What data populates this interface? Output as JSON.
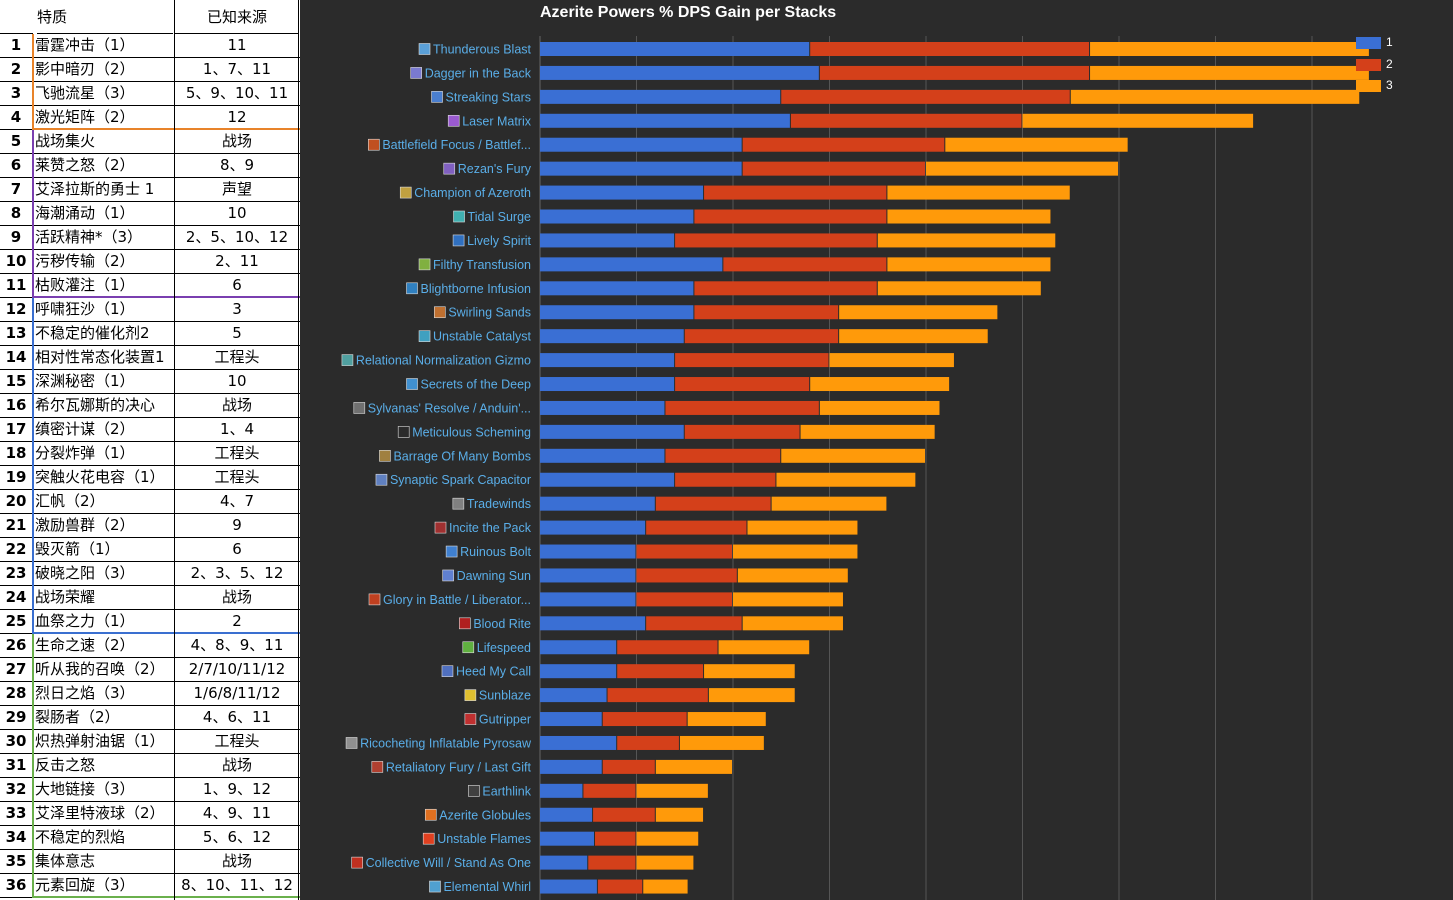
{
  "table": {
    "headers": {
      "trait": "特质",
      "source": "已知来源"
    },
    "rows": [
      {
        "num": "1",
        "name": "雷霆冲击（1）",
        "source": "11"
      },
      {
        "num": "2",
        "name": "影中暗刃（2）",
        "source": "1、7、11"
      },
      {
        "num": "3",
        "name": "飞驰流星（3）",
        "source": "5、9、10、11"
      },
      {
        "num": "4",
        "name": "激光矩阵（2）",
        "source": "12"
      },
      {
        "num": "5",
        "name": "战场集火",
        "source": "战场"
      },
      {
        "num": "6",
        "name": "莱赞之怒（2）",
        "source": "8、9"
      },
      {
        "num": "7",
        "name": "艾泽拉斯的勇士 1",
        "source": "声望"
      },
      {
        "num": "8",
        "name": "海潮涌动（1）",
        "source": "10"
      },
      {
        "num": "9",
        "name": "活跃精神*（3）",
        "source": "2、5、10、12"
      },
      {
        "num": "10",
        "name": "污秽传输（2）",
        "source": "2、11"
      },
      {
        "num": "11",
        "name": "枯败灌注（1）",
        "source": "6"
      },
      {
        "num": "12",
        "name": "呼啸狂沙（1）",
        "source": "3"
      },
      {
        "num": "13",
        "name": "不稳定的催化剂2",
        "source": "5"
      },
      {
        "num": "14",
        "name": "相对性常态化装置1",
        "source": "工程头"
      },
      {
        "num": "15",
        "name": "深渊秘密（1）",
        "source": "10"
      },
      {
        "num": "16",
        "name": "希尔瓦娜斯的决心",
        "source": "战场"
      },
      {
        "num": "17",
        "name": "缜密计谋（2）",
        "source": "1、4"
      },
      {
        "num": "18",
        "name": "分裂炸弹（1）",
        "source": "工程头"
      },
      {
        "num": "19",
        "name": "突触火花电容（1）",
        "source": "工程头"
      },
      {
        "num": "20",
        "name": "汇帆（2）",
        "source": "4、7"
      },
      {
        "num": "21",
        "name": "激励兽群（2）",
        "source": "9"
      },
      {
        "num": "22",
        "name": "毁灭箭（1）",
        "source": "6"
      },
      {
        "num": "23",
        "name": "破晓之阳（3）",
        "source": "2、3、5、12"
      },
      {
        "num": "24",
        "name": "战场荣耀",
        "source": "战场"
      },
      {
        "num": "25",
        "name": "血祭之力（1）",
        "source": "2"
      },
      {
        "num": "26",
        "name": "生命之速（2）",
        "source": "4、8、9、11"
      },
      {
        "num": "27",
        "name": "听从我的召唤（2）",
        "source": "2/7/10/11/12"
      },
      {
        "num": "28",
        "name": "烈日之焰（3）",
        "source": "1/6/8/11/12"
      },
      {
        "num": "29",
        "name": "裂肠者（2）",
        "source": "4、6、11"
      },
      {
        "num": "30",
        "name": "炽热弹射油锯（1）",
        "source": "工程头"
      },
      {
        "num": "31",
        "name": "反击之怒",
        "source": "战场"
      },
      {
        "num": "32",
        "name": "大地链接（3）",
        "source": "1、9、12"
      },
      {
        "num": "33",
        "name": "艾泽里特液球（2）",
        "source": "4、9、11"
      },
      {
        "num": "34",
        "name": "不稳定的烈焰",
        "source": "5、6、12"
      },
      {
        "num": "35",
        "name": "集体意志",
        "source": "战场"
      },
      {
        "num": "36",
        "name": "元素回旋（3）",
        "source": "8、10、11、12"
      }
    ],
    "group_colors": [
      "#e8832a",
      "#7a3fb0",
      "#3a6fd0",
      "#6ab04c"
    ]
  },
  "chart_data": {
    "type": "bar",
    "orientation": "horizontal",
    "stacked": true,
    "title": "Azerite Powers % DPS Gain per Stacks",
    "xlabel": "",
    "ylabel": "",
    "xlim": [
      0,
      8.5
    ],
    "grid": true,
    "legend_position": "top-right",
    "categories": [
      "Thunderous Blast",
      "Dagger in the Back",
      "Streaking Stars",
      "Laser Matrix",
      "Battlefield Focus / Battlef...",
      "Rezan's Fury",
      "Champion of Azeroth",
      "Tidal Surge",
      "Lively Spirit",
      "Filthy Transfusion",
      "Blightborne Infusion",
      "Swirling Sands",
      "Unstable Catalyst",
      "Relational Normalization Gizmo",
      "Secrets of the Deep",
      "Sylvanas' Resolve / Anduin'...",
      "Meticulous Scheming",
      "Barrage Of Many Bombs",
      "Synaptic Spark Capacitor",
      "Tradewinds",
      "Incite the Pack",
      "Ruinous Bolt",
      "Dawning Sun",
      "Glory in Battle / Liberator...",
      "Blood Rite",
      "Lifespeed",
      "Heed My Call",
      "Sunblaze",
      "Gutripper",
      "Ricocheting Inflatable Pyrosaw",
      "Retaliatory Fury / Last Gift",
      "Earthlink",
      "Azerite Globules",
      "Unstable Flames",
      "Collective Will / Stand As One",
      "Elemental Whirl"
    ],
    "icon_colors": [
      "#5aa0d8",
      "#7a7ad0",
      "#4a7fd0",
      "#9a5ad0",
      "#c05020",
      "#8060c0",
      "#c0a040",
      "#40b0b0",
      "#3070c0",
      "#80b040",
      "#3080c0",
      "#c07030",
      "#40a0c0",
      "#50a0a0",
      "#4090d0",
      "#707070",
      "#2b2b2b",
      "#a08040",
      "#6080c0",
      "#808080",
      "#a03030",
      "#4080d0",
      "#6080d0",
      "#c04020",
      "#b02020",
      "#60b040",
      "#5070c0",
      "#e0c030",
      "#c03030",
      "#909090",
      "#b04030",
      "#404040",
      "#e07020",
      "#e04020",
      "#c03020",
      "#50a0d0"
    ],
    "label_color": "#5aaee8",
    "series": [
      {
        "name": "1",
        "color": "#3a6fd4",
        "values": [
          2.8,
          2.9,
          2.5,
          2.6,
          2.1,
          2.1,
          1.7,
          1.6,
          1.4,
          1.9,
          1.6,
          1.6,
          1.5,
          1.4,
          1.4,
          1.3,
          1.5,
          1.3,
          1.4,
          1.2,
          1.1,
          1.0,
          1.0,
          1.0,
          1.1,
          0.8,
          0.8,
          0.7,
          0.65,
          0.8,
          0.65,
          0.45,
          0.55,
          0.57,
          0.5,
          0.6
        ]
      },
      {
        "name": "2",
        "color": "#d4401a",
        "values": [
          2.9,
          2.8,
          3.0,
          2.4,
          2.1,
          1.9,
          1.9,
          2.0,
          2.1,
          1.7,
          1.9,
          1.5,
          1.6,
          1.6,
          1.4,
          1.6,
          1.2,
          1.2,
          1.05,
          1.2,
          1.05,
          1.0,
          1.05,
          1.0,
          1.0,
          1.05,
          0.9,
          1.05,
          0.88,
          0.65,
          0.55,
          0.55,
          0.65,
          0.43,
          0.5,
          0.47
        ]
      },
      {
        "name": "3",
        "color": "#ff9a0a",
        "values": [
          2.9,
          2.9,
          3.0,
          2.4,
          1.9,
          2.0,
          1.9,
          1.7,
          1.85,
          1.7,
          1.7,
          1.65,
          1.55,
          1.3,
          1.45,
          1.25,
          1.4,
          1.5,
          1.45,
          1.2,
          1.15,
          1.3,
          1.15,
          1.15,
          1.05,
          0.95,
          0.95,
          0.9,
          0.82,
          0.88,
          0.8,
          0.75,
          0.5,
          0.65,
          0.6,
          0.47
        ]
      }
    ]
  }
}
